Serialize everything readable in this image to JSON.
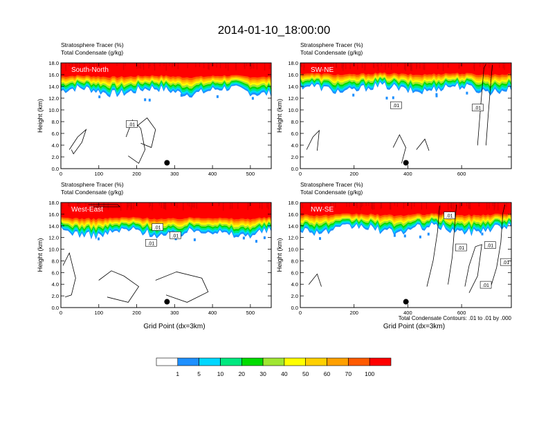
{
  "title": "2014-01-10_18:00:00",
  "colors": {
    "levels": [
      "#ffffff",
      "#1e90ff",
      "#00d7ff",
      "#00e87f",
      "#00dc00",
      "#a0e632",
      "#ffff00",
      "#ffd000",
      "#ffa000",
      "#ff5a00",
      "#ff0000"
    ]
  },
  "chart_data": [
    {
      "type": "heatmap",
      "panel_label": "South-North",
      "title_line1": "Stratosphere Tracer   (%)",
      "title_line2": "Total Condensate   (g/kg)",
      "ylabel": "Height (km)",
      "xlabel": "",
      "ylim": [
        0,
        18
      ],
      "yticks": [
        "0.0",
        "2.0",
        "4.0",
        "6.0",
        "8.0",
        "10.0",
        "12.0",
        "14.0",
        "16.0",
        "18.0"
      ],
      "xlim": [
        0,
        555
      ],
      "xticks": [
        0,
        100,
        200,
        300,
        400,
        500
      ],
      "marker_x": 280,
      "tracer_base_km": 13.2,
      "contour_label": ".01",
      "contour_label_positions": [
        [
          187,
          7.6
        ]
      ]
    },
    {
      "type": "heatmap",
      "panel_label": "SW-NE",
      "title_line1": "Stratosphere Tracer   (%)",
      "title_line2": "Total Condensate   (g/kg)",
      "ylabel": "Height (km)",
      "xlabel": "",
      "ylim": [
        0,
        18
      ],
      "yticks": [
        "0.0",
        "2.0",
        "4.0",
        "6.0",
        "8.0",
        "10.0",
        "12.0",
        "14.0",
        "16.0",
        "18.0"
      ],
      "xlim": [
        0,
        785
      ],
      "xticks": [
        0,
        200,
        400,
        600
      ],
      "marker_x": 393,
      "tracer_base_km": 13.6,
      "contour_label": ".01",
      "contour_label_positions": [
        [
          356,
          10.8
        ],
        [
          660,
          10.4
        ]
      ]
    },
    {
      "type": "heatmap",
      "panel_label": "West-East",
      "title_line1": "Stratosphere Tracer   (%)",
      "title_line2": "Total Condensate   (g/kg)",
      "ylabel": "Height (km)",
      "xlabel": "Grid Point (dx=3km)",
      "ylim": [
        0,
        18
      ],
      "yticks": [
        "0.0",
        "2.0",
        "4.0",
        "6.0",
        "8.0",
        "10.0",
        "12.0",
        "14.0",
        "16.0",
        "18.0"
      ],
      "xlim": [
        0,
        555
      ],
      "xticks": [
        0,
        100,
        200,
        300,
        400,
        500
      ],
      "marker_x": 280,
      "tracer_base_km": 12.8,
      "contour_label": ".01",
      "contour_label_positions": [
        [
          255,
          13.8
        ],
        [
          302,
          12.4
        ],
        [
          238,
          11.1
        ]
      ]
    },
    {
      "type": "heatmap",
      "panel_label": "NW-SE",
      "title_line1": "Stratosphere Tracer   (%)",
      "title_line2": "Total Condensate   (g/kg)",
      "ylabel": "Height (km)",
      "xlabel": "Grid Point (dx=3km)",
      "ylim": [
        0,
        18
      ],
      "yticks": [
        "0.0",
        "2.0",
        "4.0",
        "6.0",
        "8.0",
        "10.0",
        "12.0",
        "14.0",
        "16.0",
        "18.0"
      ],
      "xlim": [
        0,
        785
      ],
      "xticks": [
        0,
        200,
        400,
        600
      ],
      "marker_x": 393,
      "tracer_base_km": 13.4,
      "contour_label": ".01",
      "contour_label_positions": [
        [
          555,
          15.8
        ],
        [
          598,
          10.3
        ],
        [
          706,
          10.7
        ],
        [
          765,
          7.8
        ],
        [
          690,
          3.9
        ]
      ],
      "footnote": "Total Condensate Contours: .01 to .01 by .000"
    }
  ],
  "colorbar": {
    "labels": [
      "1",
      "5",
      "10",
      "20",
      "30",
      "40",
      "50",
      "60",
      "70",
      "100"
    ]
  }
}
